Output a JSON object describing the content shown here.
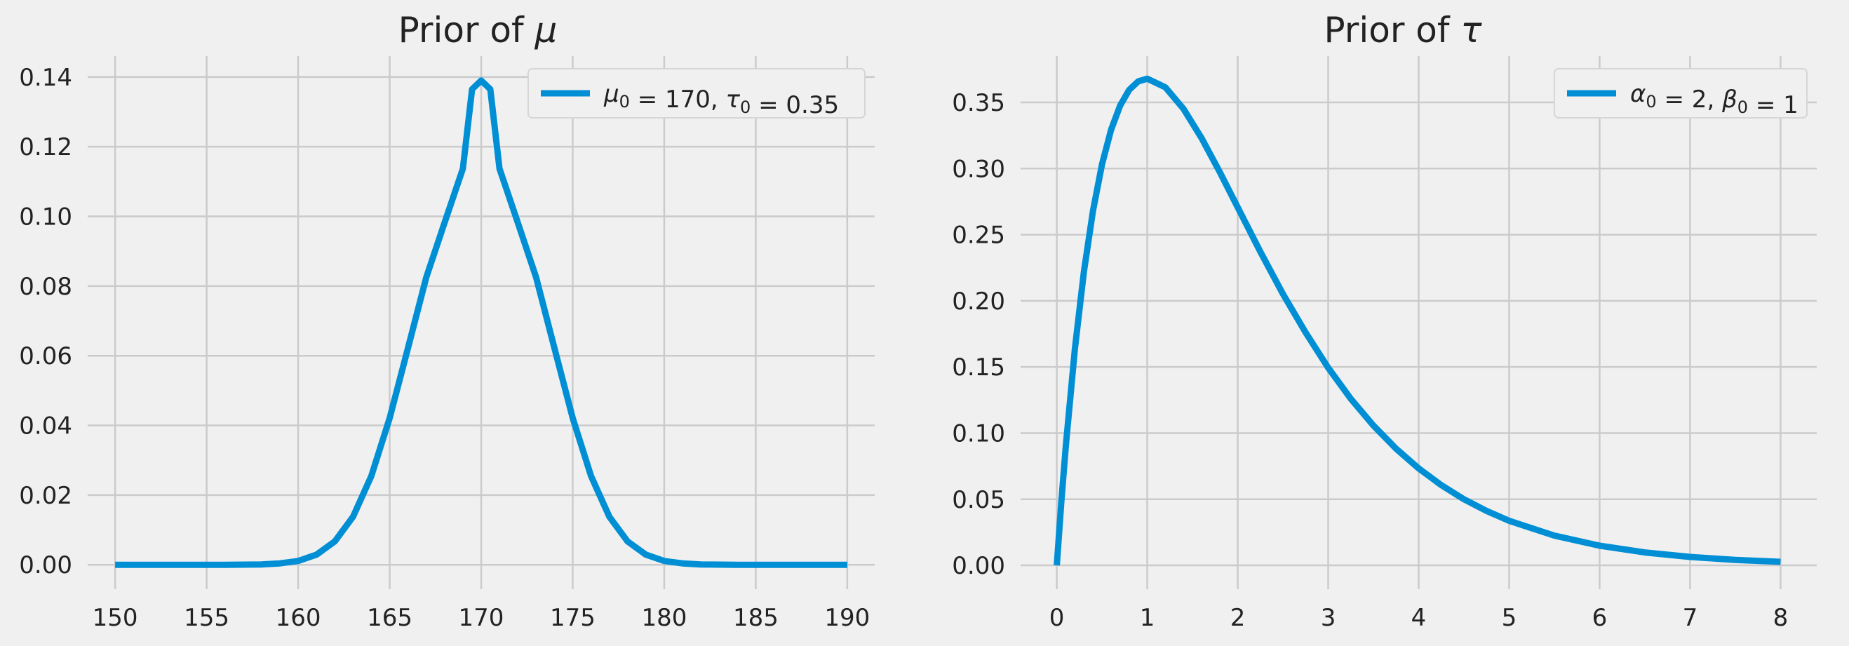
{
  "chart_data": [
    {
      "type": "line",
      "title": "Prior of μ",
      "xlabel": "",
      "ylabel": "",
      "xlim": [
        148.5,
        191.5
      ],
      "ylim": [
        -0.007,
        0.146
      ],
      "xticks": [
        "150",
        "155",
        "160",
        "165",
        "170",
        "175",
        "180",
        "185",
        "190"
      ],
      "yticks": [
        "0.00",
        "0.02",
        "0.04",
        "0.06",
        "0.08",
        "0.10",
        "0.12",
        "0.14"
      ],
      "grid": true,
      "legend_position": "top-right",
      "series": [
        {
          "name": "μ0 = 170, τ0 = 0.35",
          "color": "#008fd5",
          "x": [
            150,
            152,
            154,
            156,
            158,
            159,
            160,
            161,
            162,
            163,
            164,
            165,
            166,
            167,
            168,
            169,
            169.5,
            170,
            170.5,
            171,
            172,
            173,
            174,
            175,
            176,
            177,
            178,
            179,
            180,
            181,
            182,
            184,
            186,
            188,
            190
          ],
          "y": [
            0.0,
            0.0,
            0.0,
            0.0,
            0.0001,
            0.0004,
            0.0011,
            0.0029,
            0.0067,
            0.0138,
            0.0255,
            0.0421,
            0.0622,
            0.0825,
            0.0982,
            0.1137,
            0.1365,
            0.139,
            0.1365,
            0.1137,
            0.0982,
            0.0825,
            0.0622,
            0.0421,
            0.0255,
            0.0138,
            0.0067,
            0.0029,
            0.0011,
            0.0004,
            0.0001,
            0.0,
            0.0,
            0.0,
            0.0
          ]
        }
      ]
    },
    {
      "type": "line",
      "title": "Prior of τ",
      "xlabel": "",
      "ylabel": "",
      "xlim": [
        -0.4,
        8.4
      ],
      "ylim": [
        -0.018,
        0.385
      ],
      "xticks": [
        "0",
        "1",
        "2",
        "3",
        "4",
        "5",
        "6",
        "7",
        "8"
      ],
      "yticks": [
        "0.00",
        "0.05",
        "0.10",
        "0.15",
        "0.20",
        "0.25",
        "0.30",
        "0.35"
      ],
      "grid": true,
      "legend_position": "top-right",
      "series": [
        {
          "name": "α0 = 2, β0 = 1",
          "color": "#008fd5",
          "x": [
            0,
            0.05,
            0.1,
            0.2,
            0.3,
            0.4,
            0.5,
            0.6,
            0.7,
            0.8,
            0.9,
            1.0,
            1.2,
            1.4,
            1.6,
            1.8,
            2.0,
            2.25,
            2.5,
            2.75,
            3.0,
            3.25,
            3.5,
            3.75,
            4.0,
            4.25,
            4.5,
            4.75,
            5.0,
            5.5,
            6.0,
            6.5,
            7.0,
            7.5,
            8.0
          ],
          "y": [
            0.0,
            0.0476,
            0.0905,
            0.1637,
            0.2222,
            0.2681,
            0.3033,
            0.3293,
            0.3476,
            0.3595,
            0.3659,
            0.3679,
            0.3614,
            0.3452,
            0.323,
            0.2975,
            0.2707,
            0.2371,
            0.2052,
            0.1761,
            0.1494,
            0.1259,
            0.1057,
            0.0882,
            0.0733,
            0.0607,
            0.05,
            0.0412,
            0.0337,
            0.0225,
            0.0149,
            0.0098,
            0.0064,
            0.0041,
            0.0027
          ]
        }
      ]
    }
  ]
}
